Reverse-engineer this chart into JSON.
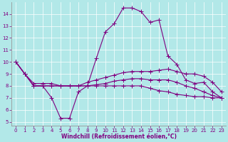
{
  "xlabel": "Windchill (Refroidissement éolien,°C)",
  "background_color": "#b2e8e8",
  "grid_color": "#ffffff",
  "line_color": "#800080",
  "xlim": [
    -0.5,
    23.5
  ],
  "ylim": [
    4.7,
    15.0
  ],
  "yticks": [
    5,
    6,
    7,
    8,
    9,
    10,
    11,
    12,
    13,
    14
  ],
  "xticks": [
    0,
    1,
    2,
    3,
    4,
    5,
    6,
    7,
    8,
    9,
    10,
    11,
    12,
    13,
    14,
    15,
    16,
    17,
    18,
    19,
    20,
    21,
    22,
    23
  ],
  "s0_x": [
    0,
    1,
    2,
    3,
    4,
    5,
    6,
    7,
    8,
    9,
    10,
    11,
    12,
    13,
    14,
    15,
    16,
    17,
    18,
    19,
    20,
    21,
    22,
    23
  ],
  "s0_y": [
    10.0,
    9.0,
    8.0,
    8.0,
    7.0,
    5.3,
    5.3,
    7.5,
    8.0,
    10.3,
    12.5,
    13.2,
    14.5,
    14.5,
    14.2,
    13.3,
    13.5,
    10.5,
    9.8,
    8.5,
    8.2,
    8.3,
    7.5,
    7.0
  ],
  "s1_x": [
    0,
    1,
    2,
    3,
    4,
    5,
    6,
    7,
    8,
    9,
    10,
    11,
    12,
    13,
    14,
    15,
    16,
    17,
    18,
    19,
    20,
    21,
    22,
    23
  ],
  "s1_y": [
    10.0,
    9.0,
    8.2,
    8.2,
    8.2,
    8.0,
    8.0,
    8.0,
    8.3,
    8.5,
    8.7,
    8.9,
    9.1,
    9.2,
    9.2,
    9.2,
    9.3,
    9.4,
    9.2,
    9.0,
    9.0,
    8.8,
    8.3,
    7.5
  ],
  "s2_x": [
    0,
    1,
    2,
    3,
    4,
    5,
    6,
    7,
    8,
    9,
    10,
    11,
    12,
    13,
    14,
    15,
    16,
    17,
    18,
    19,
    20,
    21,
    22,
    23
  ],
  "s2_y": [
    10.0,
    9.0,
    8.0,
    8.0,
    8.0,
    8.0,
    8.0,
    8.0,
    8.0,
    8.1,
    8.2,
    8.4,
    8.5,
    8.6,
    8.6,
    8.5,
    8.5,
    8.5,
    8.3,
    8.0,
    7.8,
    7.5,
    7.2,
    7.0
  ],
  "s3_x": [
    0,
    1,
    2,
    3,
    4,
    5,
    6,
    7,
    8,
    9,
    10,
    11,
    12,
    13,
    14,
    15,
    16,
    17,
    18,
    19,
    20,
    21,
    22,
    23
  ],
  "s3_y": [
    10.0,
    9.0,
    8.0,
    8.0,
    8.0,
    8.0,
    8.0,
    8.0,
    8.0,
    8.0,
    8.0,
    8.0,
    8.0,
    8.0,
    8.0,
    7.8,
    7.6,
    7.5,
    7.3,
    7.2,
    7.1,
    7.1,
    7.0,
    7.0
  ],
  "marker_size": 2.5,
  "linewidth": 0.8,
  "tick_fontsize": 5,
  "xlabel_fontsize": 5.5,
  "spine_color": "#999999"
}
